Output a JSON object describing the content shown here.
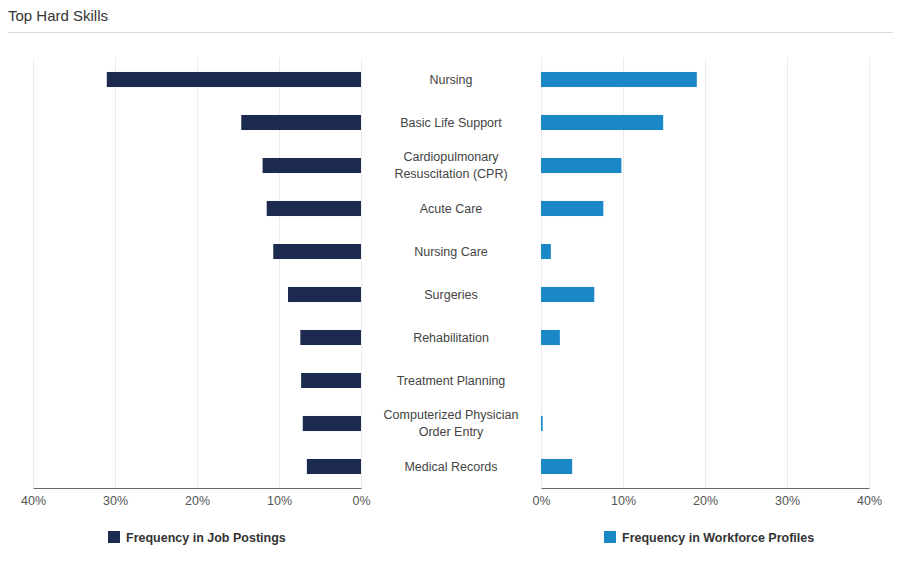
{
  "chart_data": {
    "type": "bar",
    "orientation": "horizontal",
    "title": "Top Hard Skills",
    "categories": [
      "Nursing",
      "Basic Life Support",
      "Cardiopulmonary Resuscitation (CPR)",
      "Acute Care",
      "Nursing Care",
      "Surgeries",
      "Rehabilitation",
      "Treatment Planning",
      "Computerized Physician Order Entry",
      "Medical Records"
    ],
    "series": [
      {
        "name": "Frequency in Job Postings",
        "color": "#1c2a4f",
        "values": [
          31.0,
          14.6,
          12.0,
          11.5,
          10.7,
          8.9,
          7.4,
          7.3,
          7.1,
          6.6
        ]
      },
      {
        "name": "Frequency in Workforce Profiles",
        "color": "#1a88c7",
        "values": [
          19.0,
          14.9,
          9.8,
          7.6,
          1.2,
          6.5,
          2.3,
          0,
          0.2,
          3.8
        ]
      }
    ],
    "xlim": [
      0,
      40
    ],
    "xticks": [
      {
        "value": 0,
        "label": "0%"
      },
      {
        "value": 10,
        "label": "10%"
      },
      {
        "value": 20,
        "label": "20%"
      },
      {
        "value": 30,
        "label": "30%"
      },
      {
        "value": 40,
        "label": "40%"
      }
    ],
    "grid": true,
    "legend": "bottom"
  }
}
